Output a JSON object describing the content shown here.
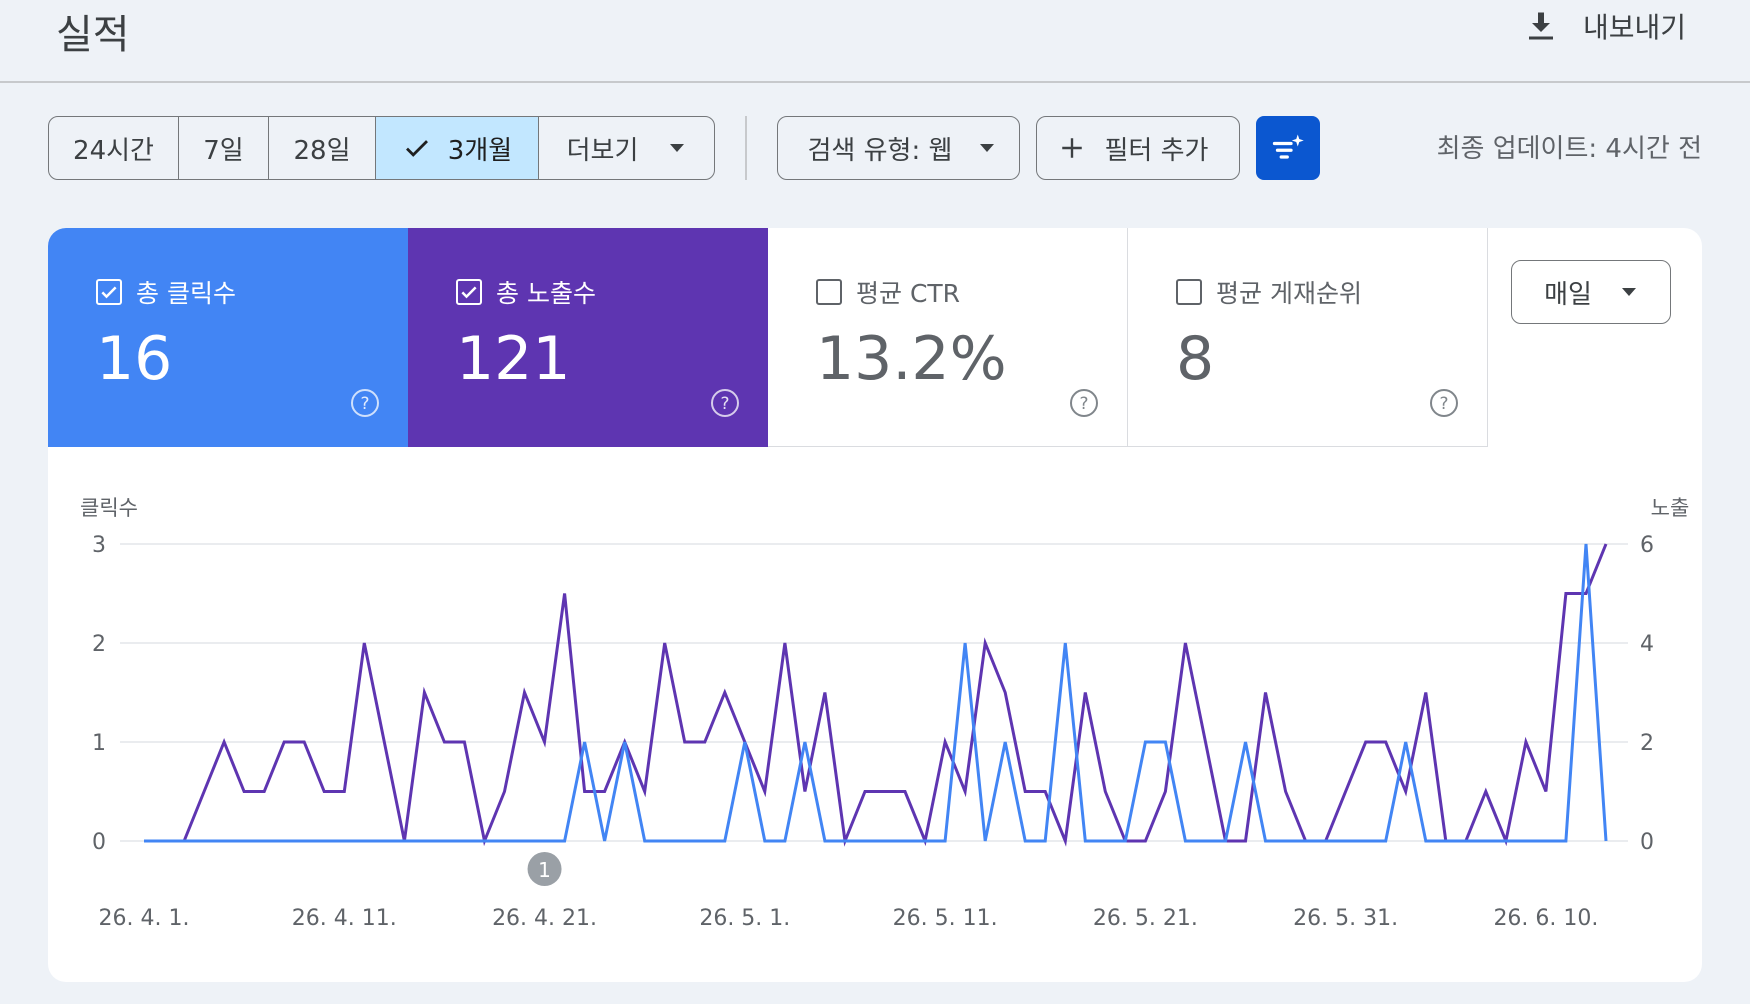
{
  "header": {
    "title": "실적",
    "export_label": "내보내기"
  },
  "filters": {
    "ranges": [
      "24시간",
      "7일",
      "28일",
      "3개월",
      "더보기"
    ],
    "active_range": "3개월",
    "search_type": "검색 유형: 웹",
    "add_filter": "필터 추가",
    "last_updated": "최종 업데이트: 4시간 전"
  },
  "metrics": {
    "clicks": {
      "label": "총 클릭수",
      "value": "16",
      "checked": true,
      "color": "#4285f4"
    },
    "impressions": {
      "label": "총 노출수",
      "value": "121",
      "checked": true,
      "color": "#5e35b1"
    },
    "ctr": {
      "label": "평균 CTR",
      "value": "13.2%",
      "checked": false
    },
    "position": {
      "label": "평균 게재순위",
      "value": "8",
      "checked": false
    }
  },
  "period_select": {
    "value": "매일"
  },
  "chart_data": {
    "type": "line",
    "left_axis": {
      "label": "클릭수",
      "range": [
        0,
        3
      ],
      "ticks": [
        "0",
        "1",
        "2",
        "3"
      ]
    },
    "right_axis": {
      "label": "노출",
      "range": [
        0,
        6
      ],
      "ticks": [
        "0",
        "2",
        "4",
        "6"
      ]
    },
    "x_tick_labels": [
      "26. 4. 1.",
      "26. 4. 11.",
      "26. 4. 21.",
      "26. 5. 1.",
      "26. 5. 11.",
      "26. 5. 21.",
      "26. 5. 31.",
      "26. 6. 10."
    ],
    "x_tick_index": [
      0,
      10,
      20,
      30,
      40,
      50,
      60,
      70
    ],
    "annotation": {
      "label": "1",
      "index": 20
    },
    "grid": true,
    "series": [
      {
        "axis": "right",
        "color": "#5e35b1",
        "values": [
          0,
          0,
          0,
          1,
          2,
          1,
          1,
          2,
          2,
          1,
          1,
          4,
          2,
          0,
          3,
          2,
          2,
          0,
          1,
          3,
          2,
          5,
          1,
          1,
          2,
          1,
          4,
          2,
          2,
          3,
          2,
          1,
          4,
          1,
          3,
          0,
          1,
          1,
          1,
          0,
          2,
          1,
          4,
          3,
          1,
          1,
          0,
          3,
          1,
          0,
          0,
          1,
          4,
          2,
          0,
          0,
          3,
          1,
          0,
          0,
          1,
          2,
          2,
          1,
          3,
          0,
          0,
          1,
          0,
          2,
          1,
          5,
          5,
          6
        ]
      },
      {
        "axis": "left",
        "color": "#4285f4",
        "values": [
          0,
          0,
          0,
          0,
          0,
          0,
          0,
          0,
          0,
          0,
          0,
          0,
          0,
          0,
          0,
          0,
          0,
          0,
          0,
          0,
          0,
          0,
          1,
          0,
          1,
          0,
          0,
          0,
          0,
          0,
          1,
          0,
          0,
          1,
          0,
          0,
          0,
          0,
          0,
          0,
          0,
          2,
          0,
          1,
          0,
          0,
          2,
          0,
          0,
          0,
          1,
          1,
          0,
          0,
          0,
          1,
          0,
          0,
          0,
          0,
          0,
          0,
          0,
          1,
          0,
          0,
          0,
          0,
          0,
          0,
          0,
          0,
          3,
          0
        ]
      }
    ]
  }
}
